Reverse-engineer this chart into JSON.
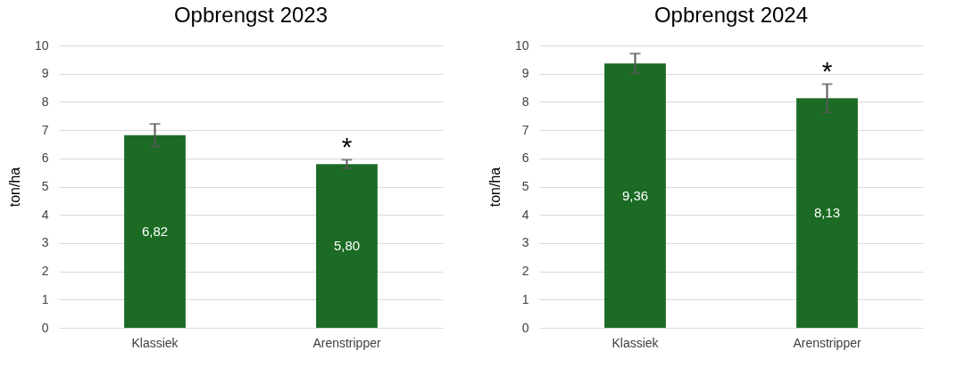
{
  "chart_data": [
    {
      "type": "bar",
      "title": "Opbrengst 2023",
      "ylabel": "ton/ha",
      "categories": [
        "Klassiek",
        "Arenstripper"
      ],
      "values": [
        6.82,
        5.8
      ],
      "value_labels": [
        "6,82",
        "5,80"
      ],
      "errors": [
        0.4,
        0.15
      ],
      "color": "#1b6b24",
      "ylim": [
        0,
        10
      ],
      "yticks": [
        0,
        1,
        2,
        3,
        4,
        5,
        6,
        7,
        8,
        9,
        10
      ],
      "grid": "y",
      "annotations": [
        "*"
      ]
    },
    {
      "type": "bar",
      "title": "Opbrengst 2024",
      "ylabel": "ton/ha",
      "categories": [
        "Klassiek",
        "Arenstripper"
      ],
      "values": [
        9.36,
        8.13
      ],
      "value_labels": [
        "9,36",
        "8,13"
      ],
      "errors": [
        0.35,
        0.5
      ],
      "color": "#1b6b24",
      "ylim": [
        0,
        10
      ],
      "yticks": [
        0,
        1,
        2,
        3,
        4,
        5,
        6,
        7,
        8,
        9,
        10
      ],
      "grid": "y",
      "annotations": [
        "*"
      ]
    }
  ]
}
